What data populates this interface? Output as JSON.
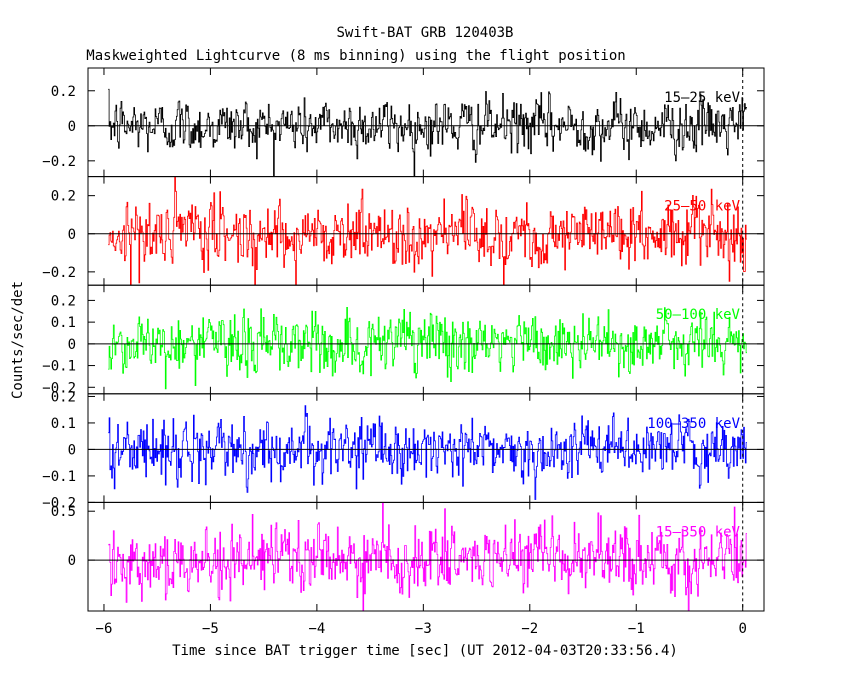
{
  "title": "Swift-BAT GRB 120403B",
  "subtitle": "Maskweighted Lightcurve (8 ms binning) using the flight position",
  "xlabel": "Time since BAT trigger time [sec] (UT 2012-04-03T20:33:56.4)",
  "ylabel": "Counts/sec/det",
  "chart_data": [
    {
      "type": "line",
      "name": "15-25 keV",
      "label": "15–25 keV",
      "color": "#000000",
      "xlim": [
        -6.15,
        0.2
      ],
      "ylim": [
        -0.29,
        0.33
      ],
      "yticks": [
        -0.2,
        0,
        0.2
      ],
      "ytick_labels": [
        "−0.2",
        "0",
        "0.2"
      ],
      "x_start": -5.96,
      "x_end": 0.04,
      "bin": 0.008,
      "noise_sigma": 0.075,
      "grid": false
    },
    {
      "type": "line",
      "name": "25-50 keV",
      "label": "25–50 keV",
      "color": "#ff0000",
      "xlim": [
        -6.15,
        0.2
      ],
      "ylim": [
        -0.27,
        0.3
      ],
      "yticks": [
        -0.2,
        0,
        0.2
      ],
      "ytick_labels": [
        "−0.2",
        "0",
        "0.2"
      ],
      "x_start": -5.96,
      "x_end": 0.04,
      "bin": 0.008,
      "noise_sigma": 0.085,
      "grid": false
    },
    {
      "type": "line",
      "name": "50-100 keV",
      "label": "50–100 keV",
      "color": "#00ff00",
      "xlim": [
        -6.15,
        0.2
      ],
      "ylim": [
        -0.23,
        0.27
      ],
      "yticks": [
        -0.2,
        -0.1,
        0,
        0.1,
        0.2
      ],
      "ytick_labels": [
        "−0.2",
        "−0.1",
        "0",
        "0.1",
        "0.2"
      ],
      "x_start": -5.96,
      "x_end": 0.04,
      "bin": 0.008,
      "noise_sigma": 0.07,
      "grid": false
    },
    {
      "type": "line",
      "name": "100-350 keV",
      "label": "100–350 keV",
      "color": "#0000ff",
      "xlim": [
        -6.15,
        0.2
      ],
      "ylim": [
        -0.2,
        0.21
      ],
      "yticks": [
        -0.2,
        -0.1,
        0,
        0.1,
        0.2
      ],
      "ytick_labels": [
        "−0.2",
        "−0.1",
        "0",
        "0.1",
        "0.2"
      ],
      "x_start": -5.96,
      "x_end": 0.04,
      "bin": 0.008,
      "noise_sigma": 0.055,
      "grid": false
    },
    {
      "type": "line",
      "name": "15-350 keV",
      "label": "15–350 keV",
      "color": "#ff00ff",
      "xlim": [
        -6.15,
        0.2
      ],
      "ylim": [
        -0.52,
        0.59
      ],
      "yticks": [
        0,
        0.5
      ],
      "ytick_labels": [
        "0",
        "0.5"
      ],
      "x_start": -5.96,
      "x_end": 0.04,
      "bin": 0.008,
      "noise_sigma": 0.17,
      "grid": false
    }
  ],
  "xaxis": {
    "ticks": [
      -6,
      -5,
      -4,
      -3,
      -2,
      -1,
      0
    ],
    "tick_labels": [
      "−6",
      "−5",
      "−4",
      "−3",
      "−2",
      "−1",
      "0"
    ]
  }
}
